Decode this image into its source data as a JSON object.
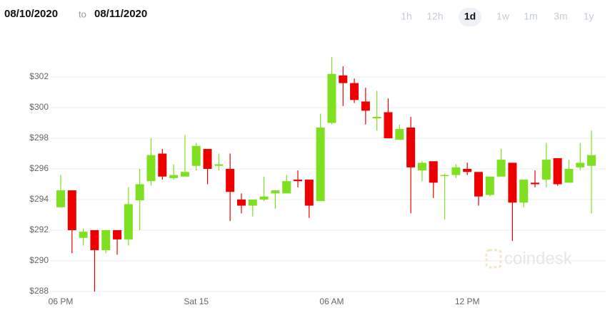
{
  "header": {
    "date_from": "08/10/2020",
    "to": "to",
    "date_to": "08/11/2020",
    "ranges": [
      "1h",
      "12h",
      "1d",
      "1w",
      "1m",
      "3m",
      "1y"
    ],
    "selected_range": 2,
    "watermark": "coindesk"
  },
  "chart_data": {
    "type": "candlestick",
    "categories": [
      "06 PM",
      null,
      null,
      null,
      null,
      null,
      null,
      null,
      null,
      null,
      null,
      null,
      "Sat 15",
      null,
      null,
      null,
      null,
      null,
      null,
      null,
      null,
      null,
      null,
      null,
      "06 AM",
      null,
      null,
      null,
      null,
      null,
      null,
      null,
      null,
      null,
      null,
      null,
      "12 PM",
      null,
      null,
      null,
      null,
      null,
      null,
      null,
      null,
      null,
      null,
      null
    ],
    "open": [
      293.5,
      294.6,
      291.5,
      292.0,
      290.7,
      292.0,
      291.4,
      293.95,
      295.2,
      297.0,
      295.4,
      295.5,
      296.2,
      297.3,
      296.2,
      296.0,
      294.0,
      293.6,
      294.0,
      294.4,
      294.4,
      295.3,
      295.3,
      293.9,
      299.0,
      302.1,
      301.6,
      300.4,
      299.3,
      299.7,
      297.9,
      298.7,
      295.9,
      296.5,
      295.55,
      295.6,
      296.0,
      295.8,
      294.3,
      295.5,
      296.4,
      293.8,
      295.1,
      295.3,
      296.7,
      295.1,
      296.1,
      296.2
    ],
    "high": [
      295.6,
      294.6,
      292.1,
      292.0,
      292.0,
      292.0,
      294.8,
      296.0,
      298.0,
      297.3,
      296.3,
      298.2,
      297.7,
      297.3,
      297.0,
      297.0,
      294.4,
      294.0,
      295.5,
      294.6,
      295.6,
      295.9,
      295.3,
      299.6,
      303.3,
      302.7,
      301.9,
      301.3,
      301.1,
      300.6,
      298.9,
      299.4,
      296.5,
      296.5,
      295.7,
      296.3,
      296.4,
      295.8,
      295.5,
      297.3,
      296.4,
      295.3,
      295.9,
      297.7,
      296.7,
      296.6,
      297.7,
      298.5
    ],
    "low": [
      293.5,
      290.5,
      291.0,
      288.0,
      290.5,
      290.4,
      291.0,
      292.0,
      294.9,
      295.3,
      295.3,
      295.5,
      295.9,
      295.0,
      295.9,
      292.6,
      293.1,
      292.9,
      293.9,
      293.4,
      294.4,
      294.8,
      292.8,
      293.9,
      298.9,
      300.1,
      300.3,
      298.9,
      298.5,
      298.0,
      297.9,
      293.1,
      295.2,
      294.1,
      292.7,
      295.4,
      295.6,
      293.6,
      294.2,
      295.5,
      291.3,
      293.5,
      294.8,
      294.8,
      294.9,
      295.1,
      295.9,
      293.1
    ],
    "close": [
      294.6,
      292.0,
      291.9,
      290.7,
      292.0,
      291.4,
      293.7,
      295.0,
      296.9,
      295.5,
      295.6,
      295.8,
      297.5,
      296.0,
      296.3,
      294.5,
      293.6,
      294.0,
      294.2,
      294.6,
      295.2,
      295.2,
      293.6,
      298.7,
      302.2,
      301.6,
      300.5,
      299.8,
      299.4,
      298.0,
      298.6,
      296.1,
      296.4,
      295.1,
      295.6,
      296.1,
      295.8,
      294.2,
      295.5,
      296.6,
      293.8,
      295.3,
      295.0,
      296.6,
      295.0,
      296.0,
      296.4,
      296.9
    ],
    "up_color": "#7ee020",
    "down_color": "#ee0000",
    "ylim": [
      287,
      304.5
    ],
    "yticks": [
      {
        "value": 288,
        "label": "$288"
      },
      {
        "value": 290,
        "label": "$290"
      },
      {
        "value": 292,
        "label": "$292"
      },
      {
        "value": 294,
        "label": "$294"
      },
      {
        "value": 296,
        "label": "$296"
      },
      {
        "value": 298,
        "label": "$298"
      },
      {
        "value": 300,
        "label": "$300"
      },
      {
        "value": 302,
        "label": "$302"
      }
    ],
    "grid": true
  }
}
